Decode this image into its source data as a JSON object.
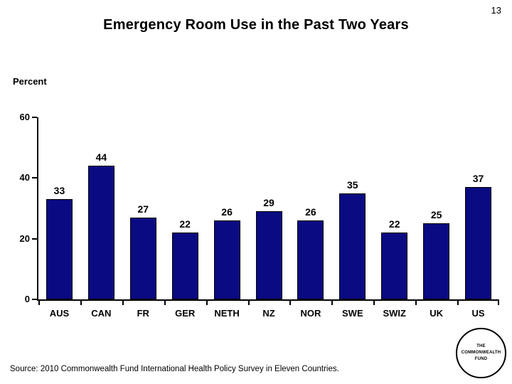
{
  "page": {
    "number": "13"
  },
  "title": "Emergency Room Use in the Past Two Years",
  "source": {
    "text": "Source: 2010 Commonwealth Fund International Health Policy Survey in Eleven Countries."
  },
  "logo": {
    "line1": "THE",
    "line2": "COMMONWEALTH",
    "line3": "FUND"
  },
  "colors": {
    "bar_fill": "#0A0A82",
    "bar_border": "#000000",
    "text": "#000000",
    "background": "#FFFFFF"
  },
  "chart_data": {
    "type": "bar",
    "title": "Emergency Room Use in the Past Two Years",
    "categories": [
      "AUS",
      "CAN",
      "FR",
      "GER",
      "NETH",
      "NZ",
      "NOR",
      "SWE",
      "SWIZ",
      "UK",
      "US"
    ],
    "values": [
      33,
      44,
      27,
      22,
      26,
      29,
      26,
      35,
      22,
      25,
      37
    ],
    "xlabel": "",
    "ylabel": "Percent",
    "ylim": [
      0,
      60
    ],
    "yticks": [
      0,
      20,
      40,
      60
    ],
    "grid": false,
    "legend": false,
    "data_labels": true,
    "bar_color": "#0A0A82"
  }
}
